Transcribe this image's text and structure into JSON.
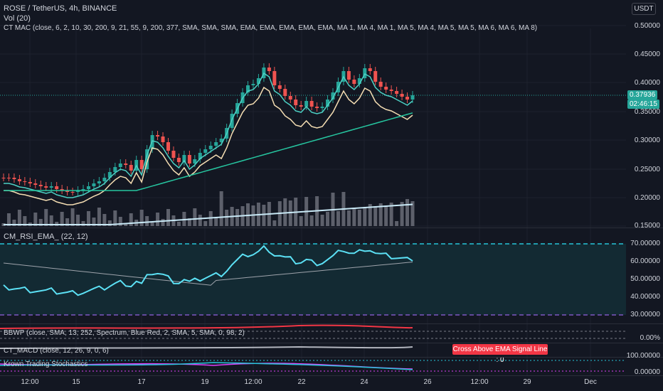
{
  "header": {
    "symbol_line": "ROSE / TetherUS, 4h, BINANCE",
    "vol_line": "Vol (20)",
    "mac_line": "CT MAC (close, 6, 2, 10, 30, 200, 9, 21, 55, 9, 200, 377, SMA, SMA, SMA, EMA, EMA, EMA, EMA, EMA, MA 1, MA 4, MA 1, MA 5, MA 4, MA 5, MA 5, MA 6, MA 6, MA 8)"
  },
  "currency_button": "USDT",
  "price_axis": [
    "0.50000",
    "0.45000",
    "0.40000",
    "0.35000",
    "0.30000",
    "0.25000",
    "0.20000",
    "0.15000"
  ],
  "last_price": {
    "value": "0.37936",
    "countdown": "02:46:15",
    "color": "#26a69a"
  },
  "rsi": {
    "title": "CM_RSI_EMA_ (22, 12)",
    "axis": [
      "70.00000",
      "60.00000",
      "50.00000",
      "40.00000",
      "30.00000"
    ]
  },
  "bbwp": {
    "title": "BBWP (close, SMA, 13, 252, Spectrum, Blue Red, 2, SMA, 5, SMA, 0, 98, 2)",
    "axis": "0.00%"
  },
  "macd": {
    "title": "CT_MACD (close, 12, 26, 9, 0, 6)",
    "signal_label": "Cross Above EMA Signal Line : 0"
  },
  "stoch": {
    "title": "Krown Trading Stochastics",
    "axis": [
      "100.00000",
      "0.00000"
    ]
  },
  "time_axis": [
    "12:00",
    "15",
    "17",
    "19",
    "12:00",
    "22",
    "24",
    "26",
    "12:00",
    "29",
    "Dec"
  ],
  "colors": {
    "bull": "#26a69a",
    "bear": "#ef5350",
    "ema_fast": "#4dd0c4",
    "ema_mid": "#f5deb3",
    "ema_slow": "#26c6a0",
    "vol_ma": "#c8e8f5",
    "rsi": "#5ce1f5",
    "rsi_band": "#26c6da"
  }
}
